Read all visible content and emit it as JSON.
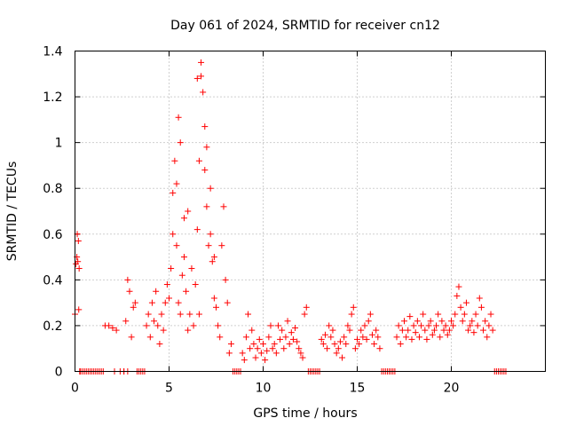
{
  "chart_data": {
    "type": "scatter",
    "title": "Day 061 of 2024, SRMTID for receiver cn12",
    "xlabel": "GPS time / hours",
    "ylabel": "SRMTID / TECUs",
    "xlim": [
      0,
      25
    ],
    "ylim": [
      0,
      1.4
    ],
    "xticks": [
      0,
      5,
      10,
      15,
      20
    ],
    "xtick_labels": [
      "0",
      "5",
      "10",
      "15",
      "20"
    ],
    "yticks": [
      0,
      0.2,
      0.4,
      0.6,
      0.8,
      1,
      1.2,
      1.4
    ],
    "ytick_labels": [
      "0",
      "0.2",
      "0.4",
      "0.6",
      "0.8",
      "1",
      "1.2",
      "1.4"
    ],
    "grid": true,
    "marker": "+",
    "color": "#ff0000",
    "series": [
      {
        "name": "SRMTID",
        "x": [
          0.0,
          0.05,
          0.1,
          0.12,
          0.15,
          0.18,
          0.2,
          0.22,
          0.25,
          0.3,
          0.4,
          0.5,
          0.6,
          0.7,
          0.8,
          0.9,
          1.0,
          1.1,
          1.2,
          1.3,
          1.4,
          1.5,
          1.6,
          1.8,
          2.0,
          2.2,
          2.1,
          2.4,
          2.6,
          2.8,
          2.6,
          2.7,
          2.8,
          2.9,
          3.0,
          3.1,
          3.2,
          3.3,
          3.4,
          3.5,
          3.6,
          3.7,
          3.8,
          3.9,
          4.0,
          4.1,
          4.2,
          4.3,
          4.4,
          4.5,
          4.6,
          4.7,
          4.8,
          4.9,
          5.0,
          5.1,
          5.2,
          5.3,
          5.4,
          5.5,
          5.6,
          5.7,
          5.8,
          5.9,
          6.0,
          5.2,
          5.4,
          5.5,
          5.6,
          5.8,
          6.0,
          6.2,
          6.4,
          6.6,
          6.5,
          6.7,
          6.9,
          7.0,
          7.2,
          7.4,
          6.1,
          6.3,
          6.5,
          6.6,
          6.7,
          6.8,
          6.9,
          7.0,
          7.1,
          7.2,
          7.3,
          7.4,
          7.5,
          7.6,
          7.7,
          7.8,
          7.9,
          8.0,
          8.1,
          8.2,
          8.3,
          8.4,
          8.5,
          8.6,
          8.7,
          8.8,
          8.9,
          9.0,
          9.1,
          9.2,
          9.3,
          9.4,
          9.5,
          9.6,
          9.7,
          9.8,
          9.9,
          10.0,
          10.1,
          10.2,
          10.3,
          10.4,
          10.5,
          10.6,
          10.7,
          10.8,
          10.9,
          11.0,
          11.1,
          11.2,
          11.3,
          11.4,
          11.5,
          11.6,
          11.7,
          11.8,
          11.9,
          12.0,
          12.1,
          12.2,
          12.3,
          12.4,
          12.5,
          12.6,
          12.7,
          12.8,
          12.9,
          13.0,
          13.1,
          13.2,
          13.3,
          13.4,
          13.5,
          13.6,
          13.7,
          13.8,
          13.9,
          14.0,
          14.1,
          14.2,
          14.3,
          14.4,
          14.5,
          14.6,
          14.7,
          14.8,
          14.9,
          15.0,
          15.1,
          15.2,
          15.3,
          15.4,
          15.5,
          15.6,
          15.7,
          15.8,
          15.9,
          16.0,
          16.1,
          16.2,
          16.3,
          16.4,
          16.5,
          16.6,
          16.7,
          16.8,
          16.9,
          17.0,
          17.1,
          17.2,
          17.3,
          17.4,
          17.5,
          17.6,
          17.7,
          17.8,
          17.9,
          18.0,
          18.1,
          18.2,
          18.3,
          18.4,
          18.5,
          18.6,
          18.7,
          18.8,
          18.9,
          19.0,
          19.1,
          19.2,
          19.3,
          19.4,
          19.5,
          19.6,
          19.7,
          19.8,
          19.9,
          20.0,
          20.1,
          20.2,
          20.3,
          20.4,
          20.5,
          20.6,
          20.7,
          20.8,
          20.9,
          21.0,
          21.1,
          21.2,
          21.3,
          21.4,
          21.5,
          21.6,
          21.7,
          21.8,
          21.9,
          22.0,
          22.1,
          22.2,
          22.3,
          22.4,
          22.5,
          22.6,
          22.7,
          22.8,
          22.9
        ],
        "y": [
          0.25,
          0.47,
          0.5,
          0.6,
          0.48,
          0.57,
          0.27,
          0.45,
          0.0,
          0.0,
          0.0,
          0.0,
          0.0,
          0.0,
          0.0,
          0.0,
          0.0,
          0.0,
          0.0,
          0.0,
          0.0,
          0.0,
          0.2,
          0.2,
          0.19,
          0.18,
          0.0,
          0.0,
          0.0,
          0.0,
          0.0,
          0.22,
          0.4,
          0.35,
          0.15,
          0.28,
          0.3,
          0.0,
          0.0,
          0.0,
          0.0,
          0.0,
          0.2,
          0.25,
          0.15,
          0.3,
          0.22,
          0.35,
          0.2,
          0.12,
          0.25,
          0.18,
          0.3,
          0.38,
          0.32,
          0.45,
          0.6,
          0.92,
          0.55,
          0.3,
          0.25,
          0.42,
          0.5,
          0.35,
          0.18,
          0.78,
          0.82,
          1.11,
          1.0,
          0.67,
          0.7,
          0.45,
          0.38,
          0.25,
          0.62,
          1.29,
          1.07,
          0.98,
          0.8,
          0.5,
          0.25,
          0.2,
          1.28,
          0.92,
          1.35,
          1.22,
          0.88,
          0.72,
          0.55,
          0.6,
          0.48,
          0.32,
          0.28,
          0.2,
          0.15,
          0.55,
          0.72,
          0.4,
          0.3,
          0.08,
          0.12,
          0.0,
          0.0,
          0.0,
          0.0,
          0.0,
          0.08,
          0.05,
          0.15,
          0.25,
          0.1,
          0.18,
          0.12,
          0.06,
          0.1,
          0.14,
          0.08,
          0.12,
          0.05,
          0.09,
          0.15,
          0.2,
          0.1,
          0.12,
          0.08,
          0.2,
          0.14,
          0.18,
          0.1,
          0.15,
          0.22,
          0.12,
          0.17,
          0.14,
          0.19,
          0.13,
          0.1,
          0.08,
          0.06,
          0.25,
          0.28,
          0.0,
          0.0,
          0.0,
          0.0,
          0.0,
          0.0,
          0.0,
          0.14,
          0.12,
          0.16,
          0.1,
          0.2,
          0.15,
          0.18,
          0.12,
          0.08,
          0.1,
          0.13,
          0.06,
          0.15,
          0.12,
          0.2,
          0.18,
          0.25,
          0.28,
          0.1,
          0.14,
          0.12,
          0.18,
          0.15,
          0.2,
          0.14,
          0.22,
          0.25,
          0.16,
          0.12,
          0.18,
          0.15,
          0.1,
          0.0,
          0.0,
          0.0,
          0.0,
          0.0,
          0.0,
          0.0,
          0.0,
          0.15,
          0.2,
          0.12,
          0.18,
          0.22,
          0.15,
          0.18,
          0.24,
          0.14,
          0.2,
          0.17,
          0.22,
          0.15,
          0.2,
          0.25,
          0.18,
          0.14,
          0.2,
          0.22,
          0.16,
          0.18,
          0.2,
          0.25,
          0.15,
          0.22,
          0.18,
          0.2,
          0.16,
          0.18,
          0.22,
          0.2,
          0.25,
          0.33,
          0.37,
          0.28,
          0.22,
          0.25,
          0.3,
          0.18,
          0.2,
          0.22,
          0.17,
          0.25,
          0.2,
          0.32,
          0.28,
          0.18,
          0.22,
          0.15,
          0.2,
          0.25,
          0.18,
          0.0,
          0.0,
          0.0,
          0.0,
          0.0,
          0.0,
          0.0
        ]
      }
    ]
  }
}
